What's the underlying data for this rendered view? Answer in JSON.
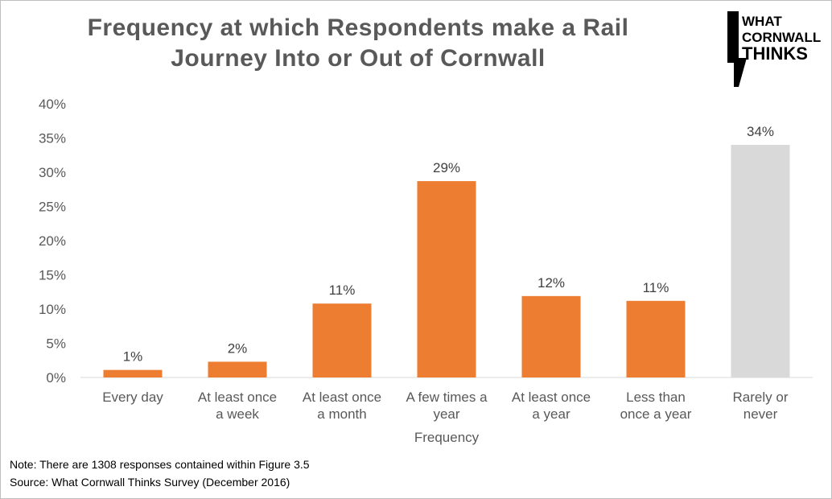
{
  "title_lines": [
    "Frequency at which Respondents make a Rail",
    "Journey Into or Out of Cornwall"
  ],
  "logo": {
    "lines": [
      "WHAT",
      "CORNWALL",
      "THINKS"
    ]
  },
  "notes": {
    "note": "Note: There are 1308 responses contained within Figure 3.5",
    "source": "Source: What Cornwall Thinks Survey (December 2016)"
  },
  "colors": {
    "bar": "#ED7D31",
    "highlight_bar": "#D9D9D9",
    "text": "#595959"
  },
  "chart_data": {
    "type": "bar",
    "title": "Frequency at which Respondents make a Rail Journey Into or Out of Cornwall",
    "xlabel": "Frequency",
    "ylabel": "",
    "categories": [
      [
        "Every day"
      ],
      [
        "At least once",
        "a week"
      ],
      [
        "At least once",
        "a month"
      ],
      [
        "A few times a",
        "year"
      ],
      [
        "At least once",
        "a year"
      ],
      [
        "Less than",
        "once a year"
      ],
      [
        "Rarely or",
        "never"
      ]
    ],
    "values": [
      1.1,
      2.3,
      10.8,
      28.7,
      11.9,
      11.2,
      34.0
    ],
    "data_labels": [
      "1%",
      "2%",
      "11%",
      "29%",
      "12%",
      "11%",
      "34%"
    ],
    "bar_colors": [
      "#ED7D31",
      "#ED7D31",
      "#ED7D31",
      "#ED7D31",
      "#ED7D31",
      "#ED7D31",
      "#D9D9D9"
    ],
    "y_ticks": [
      0,
      5,
      10,
      15,
      20,
      25,
      30,
      35,
      40
    ],
    "y_tick_labels": [
      "0%",
      "5%",
      "10%",
      "15%",
      "20%",
      "25%",
      "30%",
      "35%",
      "40%"
    ],
    "ylim": [
      0,
      40
    ],
    "grid": false,
    "legend": "none"
  }
}
